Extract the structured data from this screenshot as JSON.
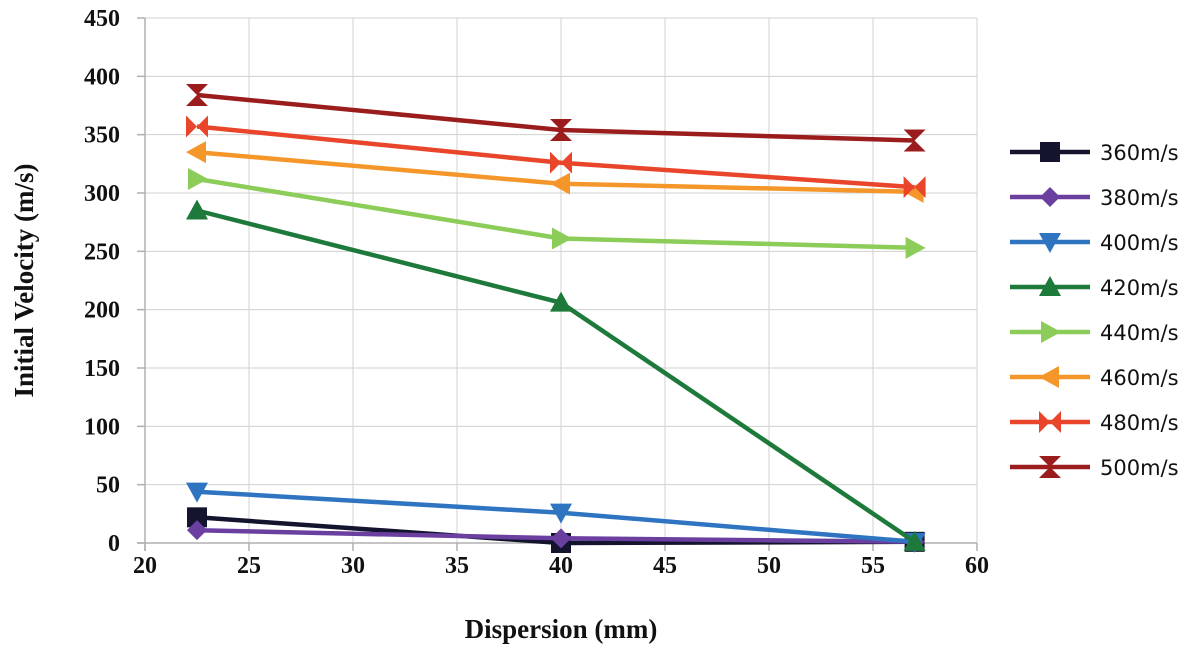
{
  "chart_data": {
    "type": "line",
    "xlabel": "Dispersion (mm)",
    "ylabel": "Initial Velocity (m/s)",
    "xlim": [
      20,
      60
    ],
    "ylim": [
      0,
      450
    ],
    "xticks": [
      "20",
      "25",
      "30",
      "35",
      "40",
      "45",
      "50",
      "55",
      "60"
    ],
    "yticks": [
      "0",
      "50",
      "100",
      "150",
      "200",
      "250",
      "300",
      "350",
      "400",
      "450"
    ],
    "grid": true,
    "legend_position": "right",
    "series": [
      {
        "name": "360m/s",
        "color": "#14142e",
        "marker": "square",
        "points": [
          [
            22.5,
            22
          ],
          [
            40,
            0
          ],
          [
            57,
            1
          ]
        ]
      },
      {
        "name": "380m/s",
        "color": "#6a3fa0",
        "marker": "diamond",
        "points": [
          [
            22.5,
            11
          ],
          [
            40,
            4
          ],
          [
            57,
            1
          ]
        ]
      },
      {
        "name": "400m/s",
        "color": "#2e74c0",
        "marker": "triangle-down",
        "points": [
          [
            22.5,
            44
          ],
          [
            40,
            26
          ],
          [
            57,
            1
          ]
        ]
      },
      {
        "name": "420m/s",
        "color": "#1d7a3a",
        "marker": "triangle-up",
        "points": [
          [
            22.5,
            285
          ],
          [
            40,
            206
          ],
          [
            57,
            1
          ]
        ]
      },
      {
        "name": "440m/s",
        "color": "#8ccc58",
        "marker": "triangle-right",
        "points": [
          [
            22.5,
            312
          ],
          [
            40,
            261
          ],
          [
            57,
            253
          ]
        ]
      },
      {
        "name": "460m/s",
        "color": "#f5962a",
        "marker": "triangle-left",
        "points": [
          [
            22.5,
            335
          ],
          [
            40,
            308
          ],
          [
            57,
            301
          ]
        ]
      },
      {
        "name": "480m/s",
        "color": "#e8452a",
        "marker": "bowtie",
        "points": [
          [
            22.5,
            357
          ],
          [
            40,
            326
          ],
          [
            57,
            305
          ]
        ]
      },
      {
        "name": "500m/s",
        "color": "#9b1c1c",
        "marker": "hourglass",
        "points": [
          [
            22.5,
            384
          ],
          [
            40,
            354
          ],
          [
            57,
            345
          ]
        ]
      }
    ]
  }
}
